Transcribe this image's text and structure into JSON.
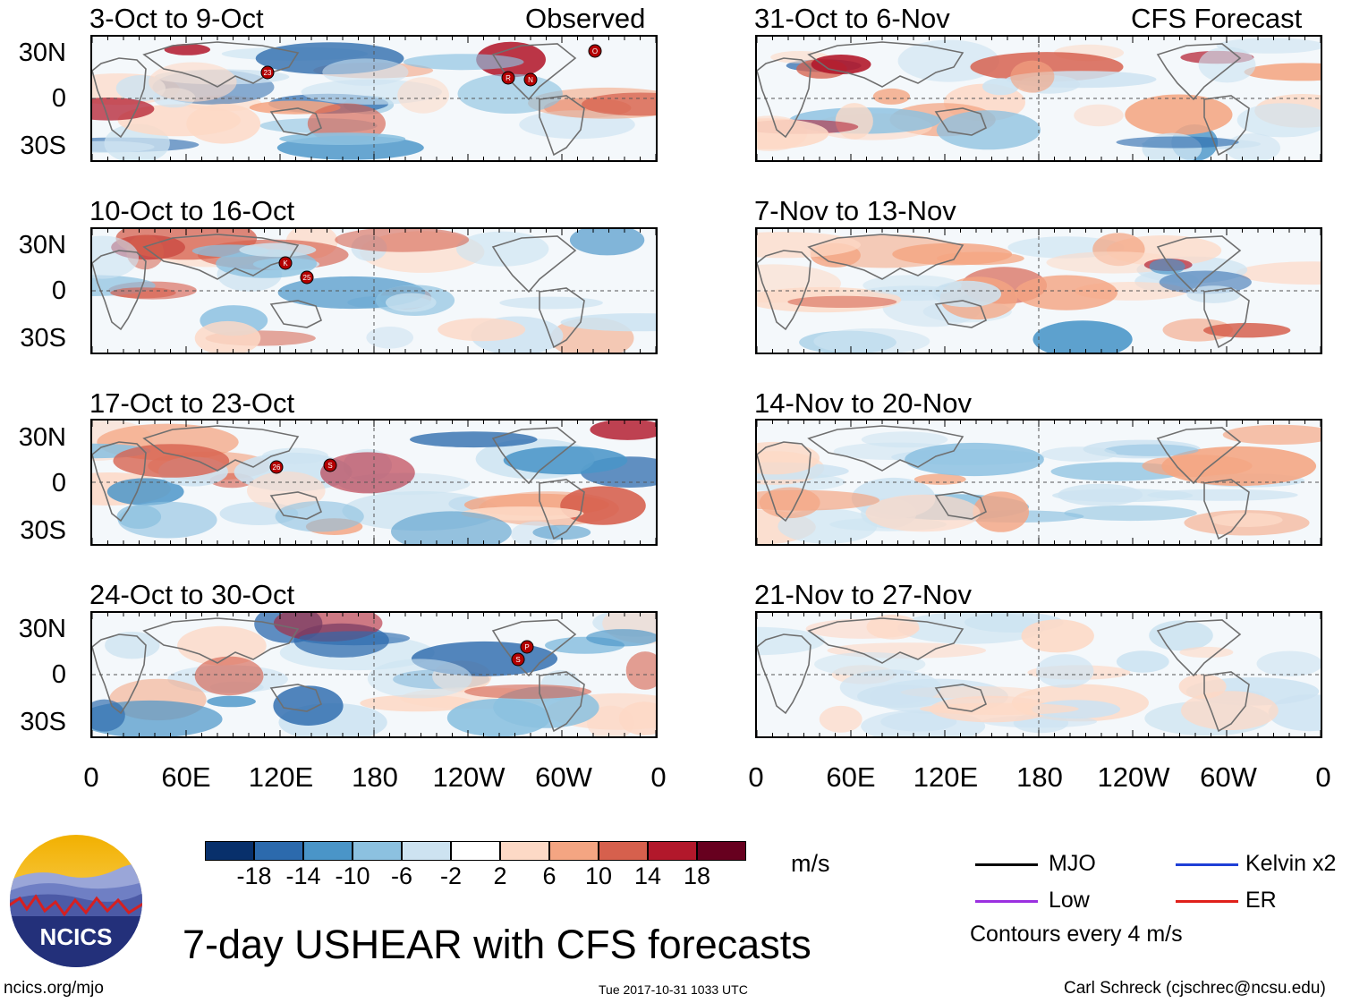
{
  "column_headers": {
    "left": "Observed",
    "right": "CFS Forecast"
  },
  "observed_panels": [
    {
      "label": "3-Oct to 9-Oct",
      "markers": [
        "23",
        "R",
        "N",
        "O"
      ]
    },
    {
      "label": "10-Oct to 16-Oct",
      "markers": [
        "K",
        "25"
      ]
    },
    {
      "label": "17-Oct to 23-Oct",
      "markers": [
        "26",
        "S"
      ]
    },
    {
      "label": "24-Oct to 30-Oct",
      "markers": [
        "S",
        "P"
      ]
    }
  ],
  "forecast_panels": [
    {
      "label": "31-Oct to 6-Nov"
    },
    {
      "label": "7-Nov to 13-Nov"
    },
    {
      "label": "14-Nov to 20-Nov"
    },
    {
      "label": "21-Nov to 27-Nov"
    }
  ],
  "lat_labels": [
    "30N",
    "0",
    "30S"
  ],
  "lon_labels": [
    "0",
    "60E",
    "120E",
    "180",
    "120W",
    "60W",
    "0"
  ],
  "colorbar": {
    "colors": [
      "#08306b",
      "#2c6aad",
      "#4a95c8",
      "#8cc1e0",
      "#cde3f1",
      "#ffffff",
      "#fdd9c6",
      "#f4a582",
      "#d6604d",
      "#b2182b",
      "#67001f"
    ],
    "tick_labels": [
      "-18",
      "-14",
      "-10",
      "-6",
      "-2",
      "2",
      "6",
      "10",
      "14",
      "18"
    ],
    "units": "m/s"
  },
  "legend": {
    "items": [
      {
        "label": "MJO",
        "color": "#000000"
      },
      {
        "label": "Kelvin x2",
        "color": "#1f3fd6"
      },
      {
        "label": "Low",
        "color": "#9b30e0"
      },
      {
        "label": "ER",
        "color": "#e0201a"
      }
    ],
    "contour_note": "Contours every 4 m/s"
  },
  "title": "7-day USHEAR with CFS forecasts",
  "logo_text": "NCICS",
  "footer": {
    "left": "ncics.org/mjo",
    "center": "Tue 2017-10-31 1033 UTC",
    "right": "Carl Schreck (cjschrec@ncsu.edu)"
  }
}
